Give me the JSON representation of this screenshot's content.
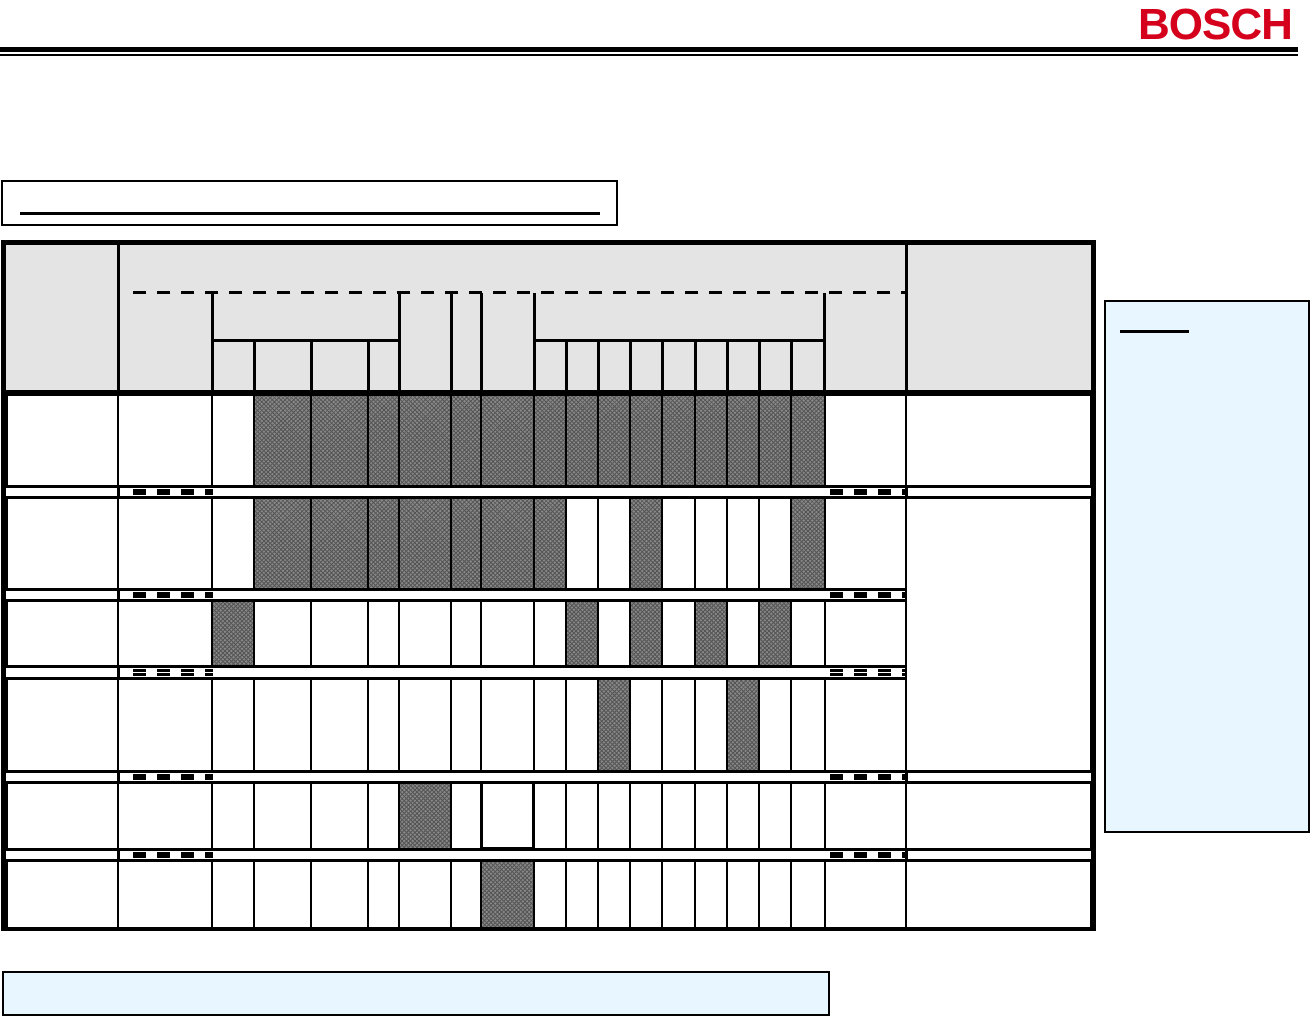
{
  "header": {
    "logo_text": "BOSCH",
    "brand_color": "#d5001c"
  },
  "colors": {
    "header_fill": "#e4e4e4",
    "shaded": "#888888",
    "panel_fill": "#e8f6ff"
  },
  "matrix": {
    "rows": [
      [
        0,
        1,
        1,
        1,
        1,
        1,
        1,
        1,
        1,
        1,
        1,
        1,
        1,
        1,
        1,
        1
      ],
      [
        0,
        1,
        1,
        1,
        1,
        1,
        1,
        1,
        0,
        0,
        1,
        0,
        0,
        0,
        0,
        1
      ],
      [
        1,
        0,
        0,
        0,
        0,
        0,
        0,
        0,
        1,
        0,
        1,
        0,
        1,
        0,
        1,
        0
      ],
      [
        0,
        0,
        0,
        0,
        0,
        0,
        0,
        0,
        0,
        1,
        0,
        0,
        0,
        1,
        0,
        0
      ],
      [
        0,
        0,
        0,
        0,
        1,
        0,
        0,
        0,
        0,
        0,
        0,
        0,
        0,
        0,
        0,
        0
      ],
      [
        0,
        0,
        0,
        0,
        0,
        0,
        1,
        0,
        0,
        0,
        0,
        0,
        0,
        0,
        0,
        0
      ]
    ]
  }
}
